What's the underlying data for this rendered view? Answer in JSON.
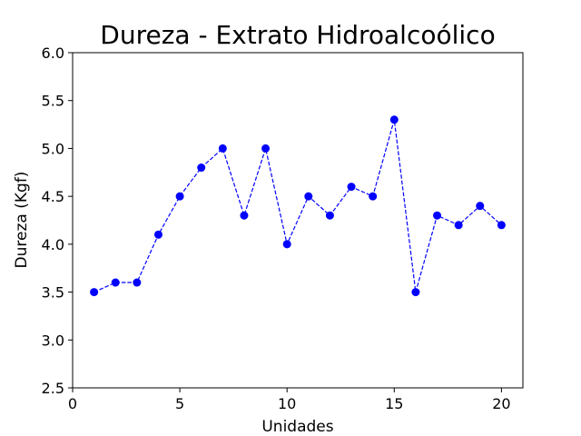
{
  "chart_data": {
    "type": "line",
    "title": "Dureza - Extrato Hidroalcoólico",
    "xlabel": "Unidades",
    "ylabel": "Dureza (Kgf)",
    "xlim": [
      0,
      21
    ],
    "ylim": [
      2.5,
      6.0
    ],
    "xticks": [
      "0",
      "5",
      "10",
      "15",
      "20"
    ],
    "yticks": [
      "2.5",
      "3.0",
      "3.5",
      "4.0",
      "4.5",
      "5.0",
      "5.5",
      "6.0"
    ],
    "grid": false,
    "series": [
      {
        "color": "#0000ff",
        "line_style": "dashed",
        "marker": "circle",
        "x": [
          1,
          2,
          3,
          4,
          5,
          6,
          7,
          8,
          9,
          10,
          11,
          12,
          13,
          14,
          15,
          16,
          17,
          18,
          19,
          20
        ],
        "y": [
          3.5,
          3.6,
          3.6,
          4.1,
          4.5,
          4.8,
          5.0,
          4.3,
          5.0,
          4.0,
          4.5,
          4.3,
          4.6,
          4.5,
          5.3,
          3.5,
          4.3,
          4.2,
          4.4,
          4.2
        ]
      }
    ]
  }
}
